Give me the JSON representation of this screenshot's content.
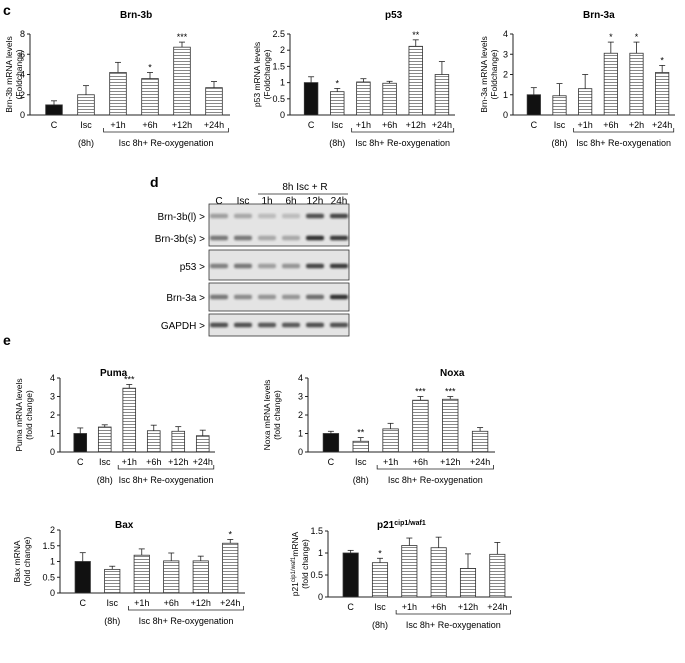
{
  "panel_labels": {
    "c": "c",
    "d": "d",
    "e": "e"
  },
  "colors": {
    "solid": "#111111",
    "stroke": "#333333",
    "hatch": "#555555",
    "errorbar": "#222222"
  },
  "chart_data": [
    {
      "id": "brn3b",
      "type": "bar",
      "title": "Brn-3b",
      "ylabel": [
        "Brn-3b mRNA levels",
        "(Foldchange)"
      ],
      "categories": [
        "C",
        "Isc",
        "+1h",
        "+6h",
        "+12h",
        "+24h"
      ],
      "values": [
        1.0,
        2.0,
        4.2,
        3.6,
        6.7,
        2.7
      ],
      "errors": [
        0.4,
        0.9,
        1.0,
        0.6,
        0.5,
        0.6
      ],
      "significance": [
        "",
        "",
        "",
        "*",
        "***",
        ""
      ],
      "ylim": [
        0,
        8
      ],
      "yticks": [
        "0",
        "2",
        "4",
        "6",
        "8"
      ],
      "xgroup": {
        "label_8h": "(8h)",
        "label_group": "Isc 8h+ Re-oxygenation"
      },
      "grid": false
    },
    {
      "id": "p53",
      "type": "bar",
      "title": "p53",
      "ylabel": [
        "p53 mRNA levels",
        "(Foldchange)"
      ],
      "categories": [
        "C",
        "Isc",
        "+1h",
        "+6h",
        "+12h",
        "+24h"
      ],
      "values": [
        1.0,
        0.72,
        1.02,
        0.98,
        2.12,
        1.25
      ],
      "errors": [
        0.18,
        0.1,
        0.1,
        0.06,
        0.2,
        0.4
      ],
      "significance": [
        "",
        "*",
        "",
        "",
        "**",
        ""
      ],
      "ylim": [
        0,
        2.5
      ],
      "yticks": [
        "0",
        "0.5",
        "1",
        "1.5",
        "2",
        "2.5"
      ],
      "xgroup": {
        "label_8h": "(8h)",
        "label_group": "Isc 8h+ Re-oxygenation"
      },
      "grid": false
    },
    {
      "id": "brn3a",
      "type": "bar",
      "title": "Brn-3a",
      "ylabel": [
        "Brn-3a mRNA levels",
        "(Foldchange)"
      ],
      "categories": [
        "C",
        "Isc",
        "+1h",
        "+6h",
        "+2h",
        "+24h"
      ],
      "values": [
        1.0,
        0.95,
        1.3,
        3.05,
        3.05,
        2.1
      ],
      "errors": [
        0.35,
        0.6,
        0.7,
        0.55,
        0.55,
        0.35
      ],
      "significance": [
        "",
        "",
        "",
        "*",
        "*",
        "*"
      ],
      "ylim": [
        0,
        4
      ],
      "yticks": [
        "0",
        "1",
        "2",
        "3",
        "4"
      ],
      "xgroup": {
        "label_8h": "(8h)",
        "label_group": "Isc 8h+ Re-oxygenation"
      },
      "grid": false
    },
    {
      "id": "puma",
      "type": "bar",
      "title": "Puma",
      "ylabel": [
        "Puma mRNA levels",
        "(fold change)"
      ],
      "categories": [
        "C",
        "Isc",
        "+1h",
        "+6h",
        "+12h",
        "+24h"
      ],
      "values": [
        1.0,
        1.35,
        3.45,
        1.15,
        1.12,
        0.88
      ],
      "errors": [
        0.3,
        0.12,
        0.2,
        0.3,
        0.25,
        0.3
      ],
      "significance": [
        "",
        "",
        "***",
        "",
        "",
        ""
      ],
      "ylim": [
        0,
        4
      ],
      "yticks": [
        "0",
        "1",
        "2",
        "3",
        "4"
      ],
      "xgroup": {
        "label_8h": "(8h)",
        "label_group": "Isc 8h+ Re-oxygenation"
      },
      "grid": false
    },
    {
      "id": "noxa",
      "type": "bar",
      "title": "Noxa",
      "ylabel": [
        "Noxa mRNA levels",
        "(fold change)"
      ],
      "categories": [
        "C",
        "Isc",
        "+1h",
        "+6h",
        "+12h",
        "+24h"
      ],
      "values": [
        1.0,
        0.58,
        1.25,
        2.8,
        2.85,
        1.12
      ],
      "errors": [
        0.12,
        0.2,
        0.3,
        0.2,
        0.15,
        0.2
      ],
      "significance": [
        "",
        "**",
        "",
        "***",
        "***",
        ""
      ],
      "ylim": [
        0,
        4
      ],
      "yticks": [
        "0",
        "1",
        "2",
        "3",
        "4"
      ],
      "xgroup": {
        "label_8h": "(8h)",
        "label_group": "Isc 8h+ Re-oxygenation"
      },
      "grid": false
    },
    {
      "id": "bax",
      "type": "bar",
      "title": "Bax",
      "ylabel": [
        "Bax mRNA",
        "(fold change)"
      ],
      "categories": [
        "C",
        "Isc",
        "+1h",
        "+6h",
        "+12h",
        "+24h"
      ],
      "values": [
        1.0,
        0.75,
        1.2,
        1.02,
        1.02,
        1.58
      ],
      "errors": [
        0.28,
        0.1,
        0.2,
        0.25,
        0.15,
        0.12
      ],
      "significance": [
        "",
        "",
        "",
        "",
        "",
        "*"
      ],
      "ylim": [
        0,
        2
      ],
      "yticks": [
        "0",
        "0.5",
        "1",
        "1.5",
        "2"
      ],
      "xgroup": {
        "label_8h": "(8h)",
        "label_group": "Isc 8h+ Re-oxygenation"
      },
      "grid": false
    },
    {
      "id": "p21",
      "type": "bar",
      "title": "p21",
      "title_sup": "cip1/waf1",
      "ylabel_base": "p21",
      "ylabel_sup": "cip1/waf1",
      "ylabel_rest": "mRNA",
      "ylabel2": "(fold change)",
      "categories": [
        "C",
        "Isc",
        "+1h",
        "+6h",
        "+12h",
        "+24h"
      ],
      "values": [
        1.0,
        0.78,
        1.17,
        1.12,
        0.65,
        0.97
      ],
      "errors": [
        0.06,
        0.1,
        0.17,
        0.24,
        0.33,
        0.27
      ],
      "significance": [
        "",
        "*",
        "",
        "",
        "",
        ""
      ],
      "ylim": [
        0,
        1.5
      ],
      "yticks": [
        "0",
        "0.5",
        "1",
        "1.5"
      ],
      "xgroup": {
        "label_8h": "(8h)",
        "label_group": "Isc 8h+ Re-oxygenation"
      },
      "grid": false
    }
  ],
  "blot": {
    "header": "8h Isc + R",
    "lanes": [
      "C",
      "Isc",
      "1h",
      "6h",
      "12h",
      "24h"
    ],
    "rows": [
      {
        "label": "Brn-3b(l) >"
      },
      {
        "label": "Brn-3b(s) >"
      },
      {
        "label": "p53 >"
      },
      {
        "label": "Brn-3a >"
      },
      {
        "label": "GAPDH >"
      }
    ],
    "band_intensity": [
      [
        0.35,
        0.3,
        0.2,
        0.2,
        0.75,
        0.8
      ],
      [
        0.55,
        0.55,
        0.3,
        0.3,
        0.9,
        0.85
      ],
      [
        0.5,
        0.55,
        0.35,
        0.4,
        0.8,
        0.85
      ],
      [
        0.55,
        0.45,
        0.4,
        0.4,
        0.6,
        0.9
      ],
      [
        0.75,
        0.75,
        0.7,
        0.7,
        0.75,
        0.75
      ]
    ]
  }
}
